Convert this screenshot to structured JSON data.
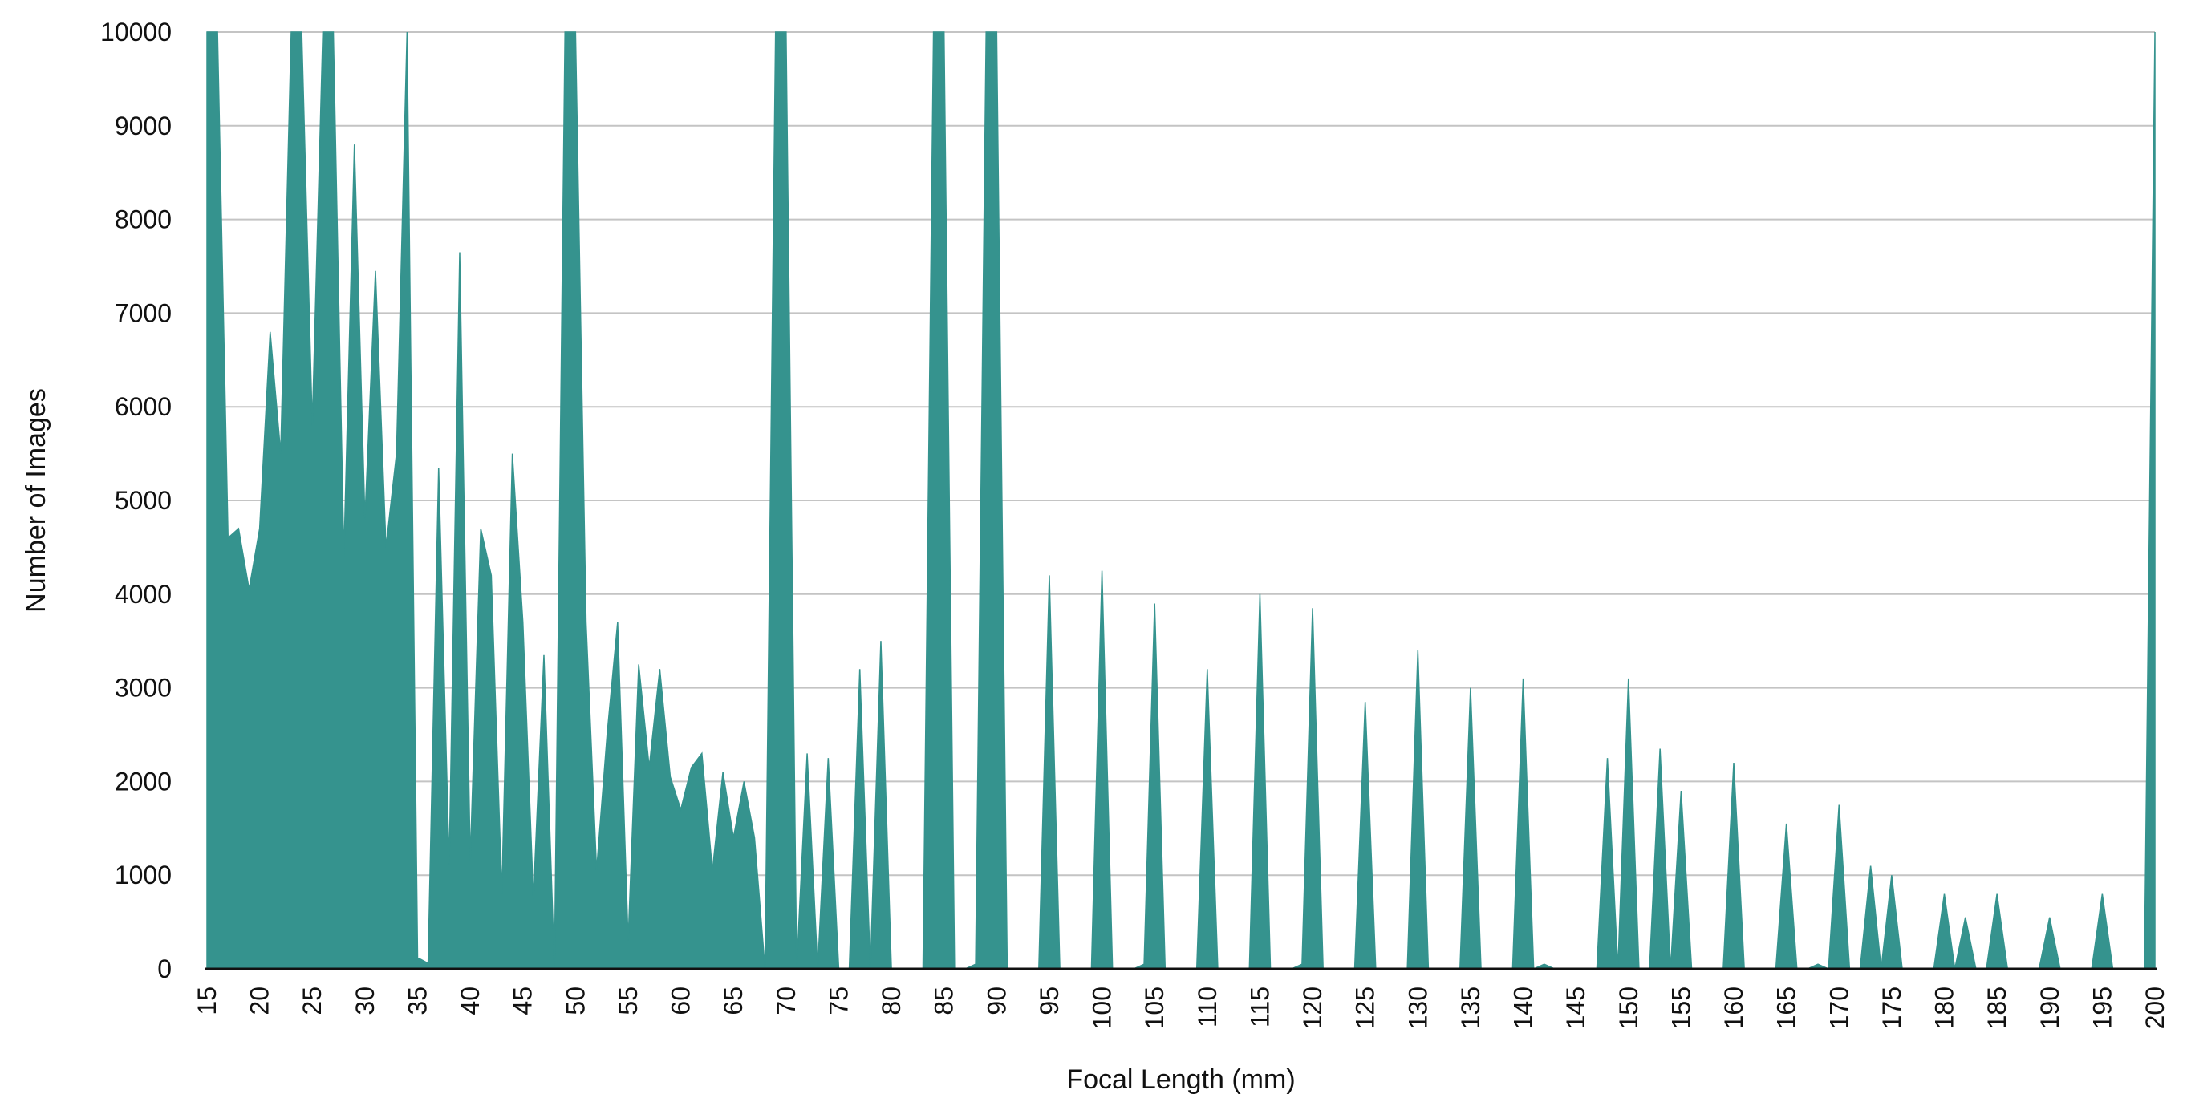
{
  "chart_data": {
    "type": "area",
    "title": "",
    "xlabel": "Focal Length (mm)",
    "ylabel": "Number of Images",
    "xlim": [
      15,
      200
    ],
    "ylim": [
      0,
      10000
    ],
    "grid": true,
    "legend": "none",
    "color": "#35938E",
    "x_ticks": [
      "15",
      "20",
      "25",
      "30",
      "35",
      "40",
      "45",
      "50",
      "55",
      "60",
      "65",
      "70",
      "75",
      "80",
      "85",
      "90",
      "95",
      "100",
      "105",
      "110",
      "115",
      "120",
      "125",
      "130",
      "135",
      "140",
      "145",
      "150",
      "155",
      "160",
      "165",
      "170",
      "175",
      "180",
      "185",
      "190",
      "195",
      "200"
    ],
    "y_ticks": [
      "0",
      "1000",
      "2000",
      "3000",
      "4000",
      "5000",
      "6000",
      "7000",
      "8000",
      "9000",
      "10000"
    ],
    "series": [
      {
        "x": [
          15,
          16,
          17,
          18,
          19,
          20,
          21,
          22,
          23,
          24,
          25,
          26,
          27,
          28,
          29,
          30,
          31,
          32,
          33,
          34,
          35,
          36,
          37,
          38,
          39,
          40,
          41,
          42,
          43,
          44,
          45,
          46,
          47,
          48,
          49,
          50,
          51,
          52,
          53,
          54,
          55,
          56,
          57,
          58,
          59,
          60,
          61,
          62,
          63,
          64,
          65,
          66,
          67,
          68,
          69,
          70,
          71,
          72,
          73,
          74,
          75,
          76,
          77,
          78,
          79,
          80,
          81,
          82,
          83,
          84,
          85,
          86,
          87,
          88,
          89,
          90,
          91,
          92,
          93,
          94,
          95,
          96,
          97,
          98,
          99,
          100,
          101,
          102,
          103,
          104,
          105,
          106,
          107,
          108,
          109,
          110,
          111,
          112,
          113,
          114,
          115,
          116,
          117,
          118,
          119,
          120,
          121,
          122,
          123,
          124,
          125,
          126,
          127,
          128,
          129,
          130,
          131,
          132,
          133,
          134,
          135,
          136,
          137,
          138,
          139,
          140,
          141,
          142,
          143,
          144,
          145,
          146,
          147,
          148,
          149,
          150,
          151,
          152,
          153,
          154,
          155,
          156,
          157,
          158,
          159,
          160,
          161,
          162,
          163,
          164,
          165,
          166,
          167,
          168,
          169,
          170,
          171,
          172,
          173,
          174,
          175,
          176,
          177,
          178,
          179,
          180,
          181,
          182,
          183,
          184,
          185,
          186,
          187,
          188,
          189,
          190,
          191,
          192,
          193,
          194,
          195,
          196,
          197,
          198,
          199,
          200
        ],
        "values": [
          10000,
          10000,
          4600,
          4700,
          4050,
          4700,
          6800,
          5500,
          10000,
          10000,
          5800,
          10000,
          10000,
          4400,
          8800,
          4800,
          7450,
          4500,
          5500,
          10000,
          120,
          60,
          5350,
          1100,
          7650,
          1150,
          4700,
          4200,
          800,
          5500,
          3700,
          750,
          3350,
          0,
          10000,
          10000,
          3700,
          1050,
          2500,
          3700,
          300,
          3250,
          2150,
          3200,
          2050,
          1700,
          2150,
          2300,
          1050,
          2100,
          1400,
          2000,
          1400,
          0,
          10000,
          10000,
          0,
          2300,
          0,
          2250,
          0,
          0,
          3200,
          0,
          3500,
          0,
          0,
          0,
          0,
          10000,
          10000,
          0,
          0,
          50,
          10000,
          10000,
          0,
          0,
          0,
          0,
          4200,
          0,
          0,
          0,
          0,
          4250,
          0,
          0,
          0,
          50,
          3900,
          0,
          0,
          0,
          0,
          3200,
          0,
          0,
          0,
          0,
          4000,
          0,
          0,
          0,
          50,
          3850,
          0,
          0,
          0,
          0,
          2850,
          0,
          0,
          0,
          0,
          3400,
          0,
          0,
          0,
          0,
          3000,
          0,
          0,
          0,
          0,
          3100,
          0,
          50,
          0,
          0,
          0,
          0,
          0,
          2250,
          0,
          3100,
          0,
          0,
          2350,
          0,
          1900,
          0,
          0,
          0,
          0,
          2200,
          0,
          0,
          0,
          0,
          1550,
          0,
          0,
          50,
          0,
          1750,
          0,
          0,
          1100,
          0,
          1000,
          0,
          0,
          0,
          0,
          800,
          0,
          550,
          0,
          0,
          800,
          0,
          0,
          0,
          0,
          550,
          0,
          0,
          0,
          0,
          800,
          0,
          0,
          0,
          0,
          10000
        ]
      }
    ]
  }
}
